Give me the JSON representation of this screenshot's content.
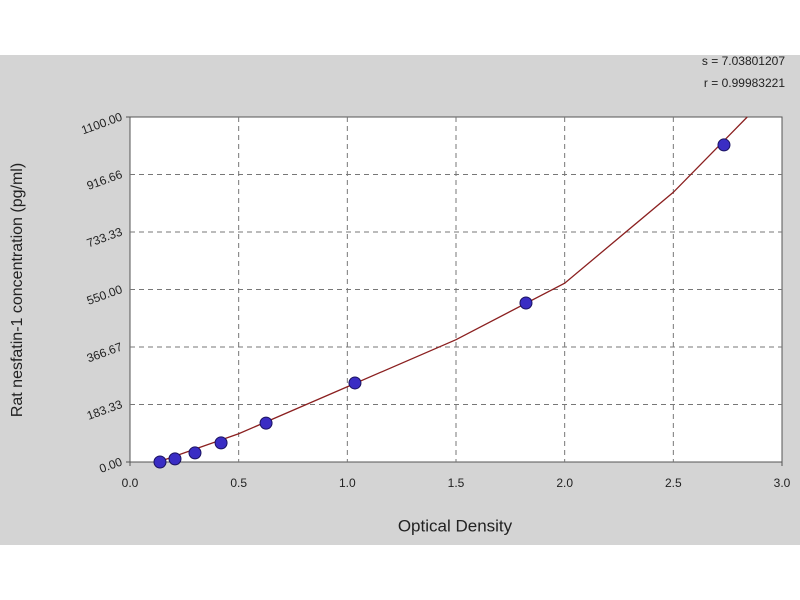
{
  "chart_data": {
    "type": "scatter",
    "x_label": "Optical Density",
    "y_label": "Rat nesfatin-1 concentration (pg/ml)",
    "annotations": [
      "s = 7.03801207",
      "r = 0.99983221"
    ],
    "x": [
      0.138,
      0.207,
      0.299,
      0.419,
      0.626,
      1.035,
      1.822,
      2.733
    ],
    "values": [
      0,
      10,
      29,
      61,
      124,
      252,
      507,
      1011
    ],
    "color": "#3a2dc4",
    "fit": {
      "color": "#8b2020",
      "x": [
        0.13,
        0.5,
        1.0,
        1.5,
        2.0,
        2.5,
        2.84
      ],
      "values": [
        0,
        90,
        240,
        390,
        570,
        860,
        1100
      ]
    },
    "xlim": [
      0,
      3
    ],
    "ylim": [
      0,
      1100
    ],
    "xticks": [
      {
        "value": 0,
        "label": "0.0"
      },
      0.5,
      {
        "value": 1,
        "label": "1.0"
      },
      1.5,
      {
        "value": 2,
        "label": "2.0"
      },
      2.5,
      {
        "value": 3,
        "label": "3.0"
      }
    ],
    "yticks": [
      {
        "value": 0,
        "label": "0.00"
      },
      183.33,
      366.67,
      {
        "value": 550,
        "label": "550.00"
      },
      733.33,
      916.66,
      {
        "value": 1100,
        "label": "1100.00"
      }
    ],
    "grid": true
  }
}
